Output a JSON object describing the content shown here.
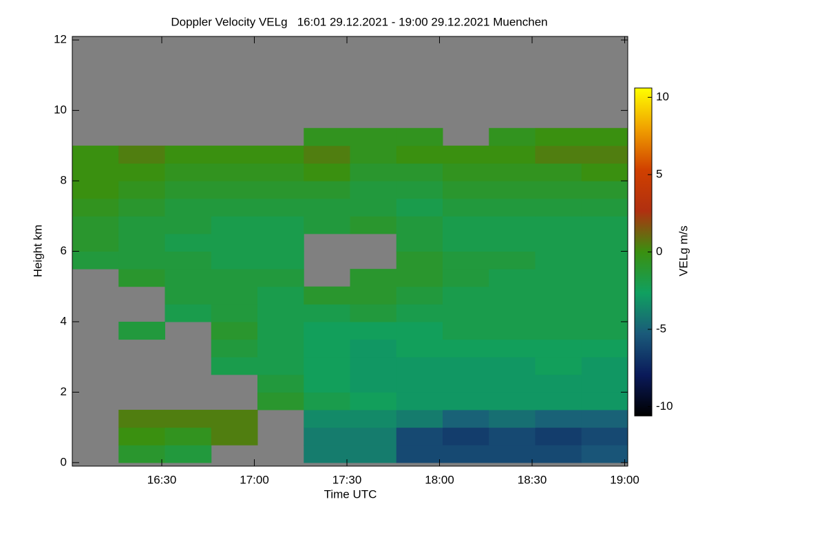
{
  "chart_data": {
    "type": "heatmap",
    "title": "Doppler Velocity VELg   16:01 29.12.2021 - 19:00 29.12.2021 Muenchen",
    "x_label": "Time UTC",
    "y_label": "Height km",
    "colorbar_label": "VELg m/s",
    "xlim": [
      961,
      1141
    ],
    "ylim": [
      -0.1,
      12.1
    ],
    "xticks": [
      {
        "value": 990,
        "label": "16:30"
      },
      {
        "value": 1020,
        "label": "17:00"
      },
      {
        "value": 1050,
        "label": "17:30"
      },
      {
        "value": 1080,
        "label": "18:00"
      },
      {
        "value": 1110,
        "label": "18:30"
      },
      {
        "value": 1140,
        "label": "19:00"
      }
    ],
    "yticks": [
      0,
      2,
      4,
      6,
      8,
      10,
      12
    ],
    "clim": [
      -10.6,
      10.6
    ],
    "cticks": [
      -10,
      -5,
      0,
      5,
      10
    ],
    "colormap": [
      "#000000",
      "#0a1a5a",
      "#1a5a7a",
      "#10a060",
      "#3a9010",
      "#b03010",
      "#d04000",
      "#f0a000",
      "#ffff00"
    ],
    "missing_color": "#808080",
    "x": [
      968.5,
      983.5,
      998.5,
      1013.5,
      1028.5,
      1043.5,
      1058.5,
      1073.5,
      1088.5,
      1103.5,
      1118.5,
      1133.5
    ],
    "y": [
      0.25,
      0.75,
      1.25,
      1.75,
      2.25,
      2.75,
      3.25,
      3.75,
      4.25,
      4.75,
      5.25,
      5.75,
      6.25,
      6.75,
      7.25,
      7.75,
      8.25,
      8.75,
      9.25,
      9.75
    ],
    "z": [
      [
        null,
        -1,
        -1.5,
        null,
        null,
        -4,
        -4,
        -6,
        -6,
        -6,
        -6,
        -5.5
      ],
      [
        null,
        0,
        -0.5,
        0.5,
        null,
        -4,
        -4,
        -6,
        -6.5,
        -6,
        -6.5,
        -6
      ],
      [
        null,
        0.5,
        0.5,
        0.5,
        null,
        -3.5,
        -3.5,
        -4,
        -5,
        -4.5,
        -5,
        -5
      ],
      [
        null,
        null,
        null,
        null,
        -1,
        -2,
        -2.5,
        -3,
        -3,
        -3,
        -3,
        -3
      ],
      [
        null,
        null,
        null,
        null,
        -1.5,
        -2.5,
        -3,
        -3,
        -3,
        -3,
        -3,
        -3
      ],
      [
        null,
        null,
        null,
        -2,
        -2,
        -2.5,
        -3,
        -3,
        -3,
        -3,
        -2.5,
        -3
      ],
      [
        null,
        null,
        null,
        -1.5,
        -2,
        -2.5,
        -3,
        -2.5,
        -2.5,
        -2.5,
        -2.5,
        -2.5
      ],
      [
        null,
        -1.5,
        null,
        -1,
        -2,
        -2.5,
        -2.5,
        -2.5,
        -2,
        -2,
        -2,
        -2
      ],
      [
        null,
        null,
        -2,
        -1.5,
        -2,
        -2,
        -1.5,
        -2,
        -2,
        -2,
        -2,
        -2
      ],
      [
        null,
        null,
        -1.5,
        -1.5,
        -2,
        -1,
        -1,
        -1.5,
        -2,
        -2,
        -2,
        -2
      ],
      [
        null,
        -1,
        -1.5,
        -1.5,
        -1.5,
        null,
        -1,
        -1,
        -1.5,
        -2,
        -2,
        -2
      ],
      [
        -1.5,
        -1.5,
        -1.5,
        -2,
        -2,
        null,
        null,
        -1,
        -1.5,
        -1.5,
        -2,
        -2
      ],
      [
        -1,
        -1.5,
        -2,
        -2,
        -2,
        null,
        null,
        -1.5,
        -2,
        -2,
        -2,
        -2
      ],
      [
        -1,
        -1.5,
        -1.5,
        -2,
        -2,
        -1.5,
        -1,
        -1.5,
        -2,
        -2,
        -2,
        -2
      ],
      [
        -0.5,
        -1,
        -1.5,
        -1.5,
        -1.5,
        -1.5,
        -1.5,
        -2,
        -1.5,
        -1.5,
        -1.5,
        -1.5
      ],
      [
        0,
        -0.5,
        -1,
        -1,
        -1,
        -1,
        -1.5,
        -1.5,
        -1,
        -1,
        -1,
        -1
      ],
      [
        0,
        0,
        -0.5,
        -0.5,
        -0.5,
        0,
        -1,
        -1,
        -0.5,
        -0.5,
        -0.5,
        0
      ],
      [
        0,
        0.5,
        0,
        0,
        0,
        0.5,
        -0.5,
        0,
        0,
        0,
        0.5,
        0.5
      ],
      [
        null,
        null,
        null,
        null,
        null,
        -0.5,
        -0.5,
        -0.5,
        null,
        -0.5,
        0,
        0
      ],
      [
        null,
        null,
        null,
        null,
        null,
        null,
        null,
        null,
        null,
        null,
        null,
        null
      ]
    ]
  }
}
